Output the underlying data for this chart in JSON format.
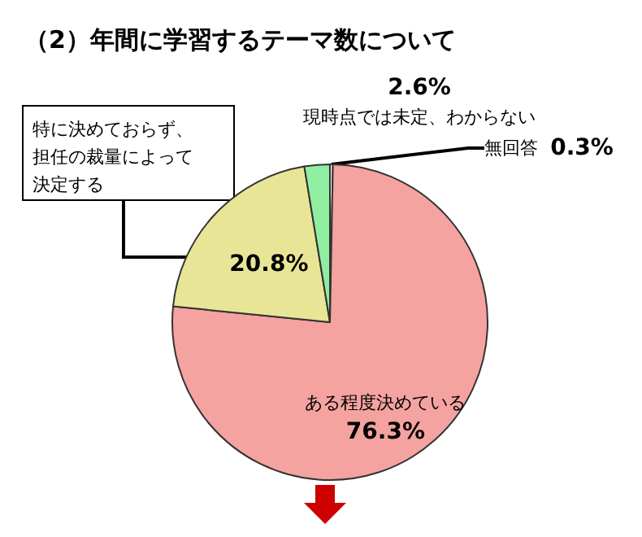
{
  "chart_data": {
    "type": "pie",
    "title": "（2）年間に学習するテーマ数について",
    "categories": [
      "無回答",
      "ある程度決めている",
      "特に決めておらず、担任の裁量によって決定する",
      "現時点では未定、わからない"
    ],
    "values": [
      0.3,
      76.3,
      20.8,
      2.6
    ],
    "value_labels": [
      "0.3%",
      "76.3%",
      "20.8%",
      "2.6%"
    ],
    "colors": [
      "#ffffff",
      "#f4a3a0",
      "#e8e696",
      "#90eea0"
    ]
  }
}
